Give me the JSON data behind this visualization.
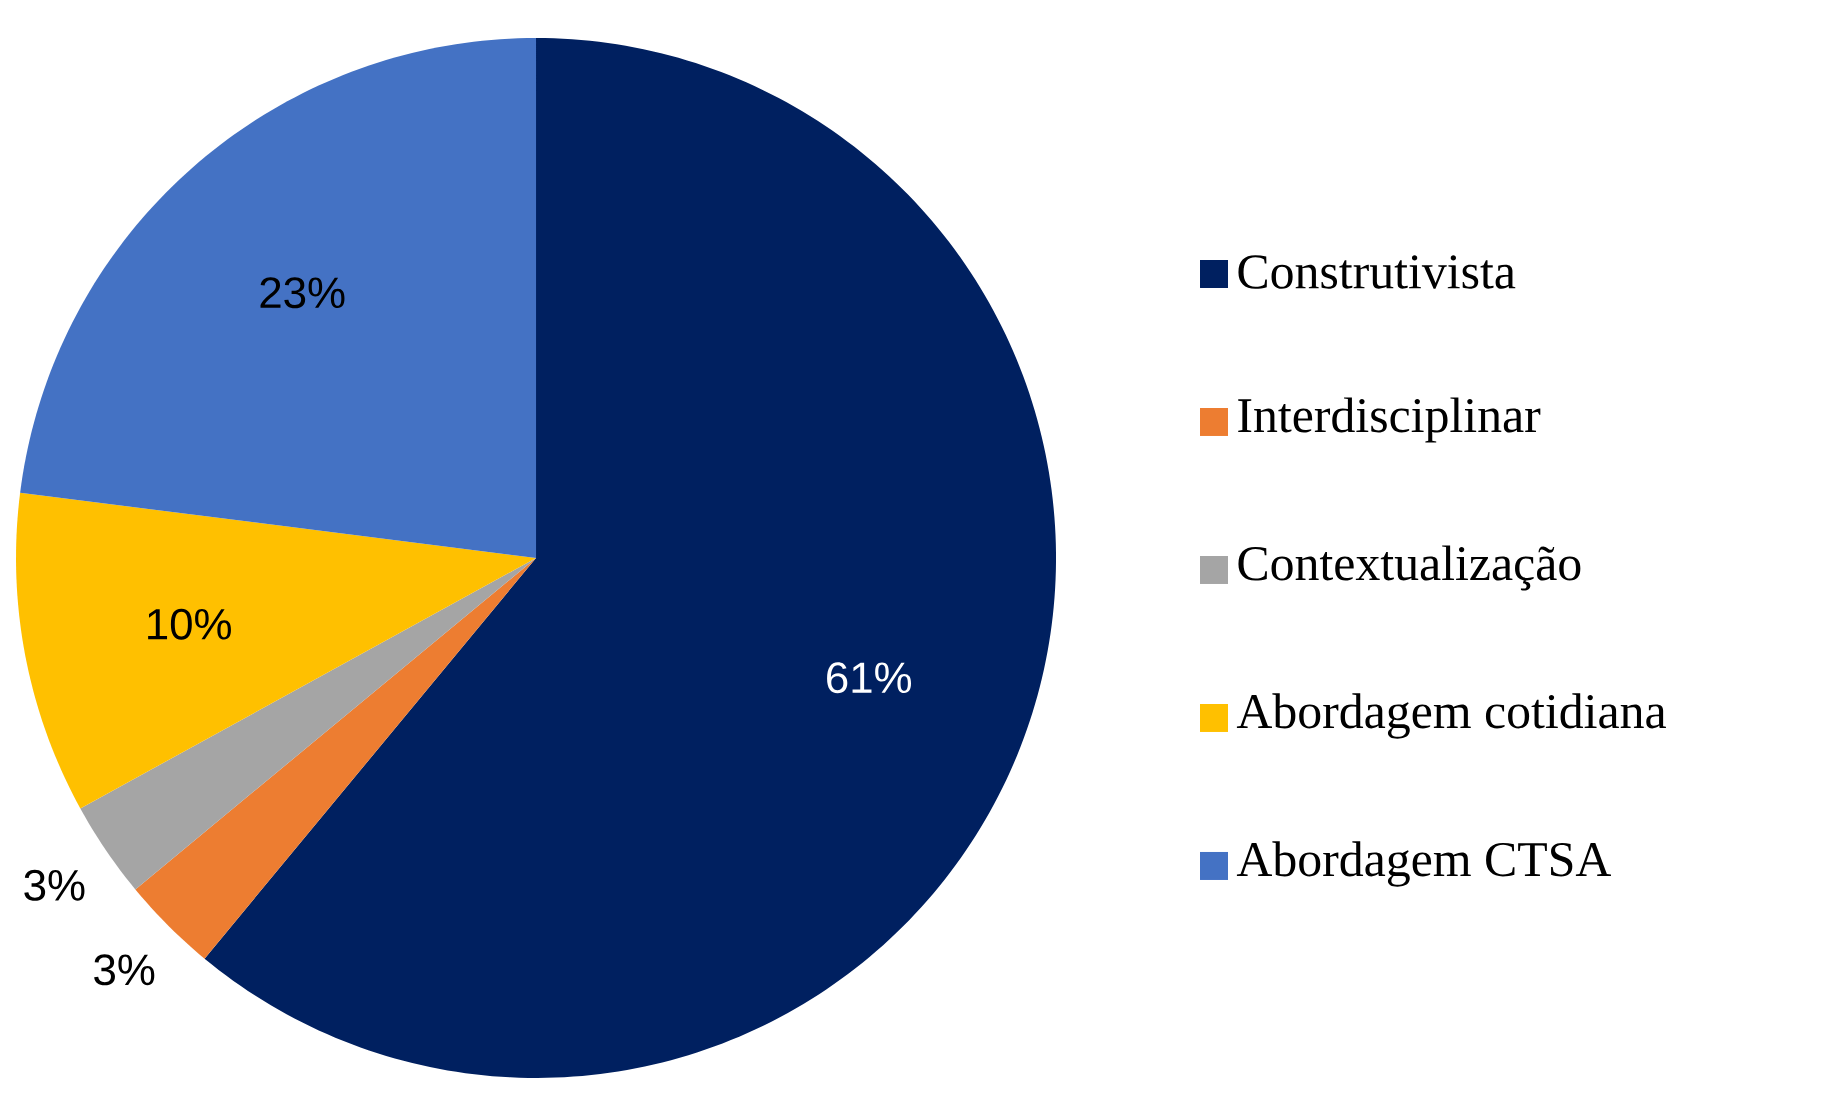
{
  "chart_data": {
    "type": "pie",
    "categories": [
      "Construtivista",
      "Interdisciplinar",
      "Contextualização",
      "Abordagem cotidiana",
      "Abordagem CTSA"
    ],
    "values": [
      61,
      3,
      3,
      10,
      23
    ],
    "colors": [
      "#002060",
      "#ed7d31",
      "#a5a5a5",
      "#ffc000",
      "#4472c4"
    ],
    "value_labels": [
      "61%",
      "3%",
      "3%",
      "10%",
      "23%"
    ],
    "legend": "right"
  }
}
